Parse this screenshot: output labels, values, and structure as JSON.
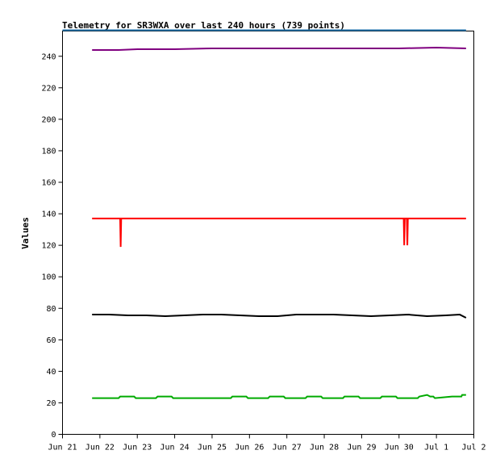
{
  "chart_data": {
    "type": "line",
    "title": "Telemetry for SR3WXA over last 240 hours (739 points)",
    "xlabel": "",
    "ylabel": "Values",
    "xlim": [
      "2024-06-21",
      "2024-07-02"
    ],
    "ylim": [
      0,
      256
    ],
    "x_ticks": [
      "Jun 21",
      "Jun 22",
      "Jun 23",
      "Jun 24",
      "Jun 25",
      "Jun 26",
      "Jun 27",
      "Jun 28",
      "Jun 29",
      "Jun 30",
      "Jul 1",
      "Jul 2"
    ],
    "y_ticks": [
      0,
      20,
      40,
      60,
      80,
      100,
      120,
      140,
      160,
      180,
      200,
      220,
      240
    ],
    "grid": false,
    "legend": "none",
    "x_range_of_data": [
      "2024-06-21T19:00",
      "2024-07-01T19:00"
    ],
    "series": [
      {
        "color": "#800080",
        "points": [
          [
            "2024-06-21T19:00",
            244
          ],
          [
            "2024-06-22T12:00",
            244
          ],
          [
            "2024-06-23T00:00",
            244.5
          ],
          [
            "2024-06-24T00:00",
            244.5
          ],
          [
            "2024-06-25T00:00",
            245
          ],
          [
            "2024-06-26T00:00",
            245
          ],
          [
            "2024-06-27T00:00",
            245
          ],
          [
            "2024-06-28T00:00",
            245
          ],
          [
            "2024-06-29T00:00",
            245
          ],
          [
            "2024-06-30T00:00",
            245
          ],
          [
            "2024-07-01T00:00",
            245.5
          ],
          [
            "2024-07-01T19:00",
            245
          ]
        ]
      },
      {
        "color": "#ff0000",
        "points": [
          [
            "2024-06-21T19:00",
            137
          ],
          [
            "2024-06-22T13:00",
            137
          ],
          [
            "2024-06-22T13:20",
            119
          ],
          [
            "2024-06-22T13:40",
            137
          ],
          [
            "2024-06-30T03:00",
            137
          ],
          [
            "2024-06-30T03:20",
            120
          ],
          [
            "2024-06-30T03:40",
            137
          ],
          [
            "2024-06-30T05:00",
            137
          ],
          [
            "2024-06-30T05:20",
            120
          ],
          [
            "2024-06-30T05:40",
            137
          ],
          [
            "2024-07-01T19:00",
            137
          ]
        ]
      },
      {
        "color": "#000000",
        "points": [
          [
            "2024-06-21T19:00",
            76
          ],
          [
            "2024-06-22T06:00",
            76
          ],
          [
            "2024-06-22T18:00",
            75.5
          ],
          [
            "2024-06-23T06:00",
            75.5
          ],
          [
            "2024-06-23T18:00",
            75
          ],
          [
            "2024-06-24T06:00",
            75.5
          ],
          [
            "2024-06-24T18:00",
            76
          ],
          [
            "2024-06-25T06:00",
            76
          ],
          [
            "2024-06-25T18:00",
            75.5
          ],
          [
            "2024-06-26T06:00",
            75
          ],
          [
            "2024-06-26T18:00",
            75
          ],
          [
            "2024-06-27T06:00",
            76
          ],
          [
            "2024-06-27T18:00",
            76
          ],
          [
            "2024-06-28T06:00",
            76
          ],
          [
            "2024-06-28T18:00",
            75.5
          ],
          [
            "2024-06-29T06:00",
            75
          ],
          [
            "2024-06-29T18:00",
            75.5
          ],
          [
            "2024-06-30T06:00",
            76
          ],
          [
            "2024-06-30T18:00",
            75
          ],
          [
            "2024-07-01T06:00",
            75.5
          ],
          [
            "2024-07-01T15:00",
            76
          ],
          [
            "2024-07-01T19:00",
            74
          ]
        ]
      },
      {
        "color": "#00aa00",
        "points": [
          [
            "2024-06-21T19:00",
            23
          ],
          [
            "2024-06-22T12:00",
            23
          ],
          [
            "2024-06-22T13:00",
            24
          ],
          [
            "2024-06-22T22:00",
            24
          ],
          [
            "2024-06-22T23:00",
            23
          ],
          [
            "2024-06-23T12:00",
            23
          ],
          [
            "2024-06-23T13:00",
            24
          ],
          [
            "2024-06-23T22:00",
            24
          ],
          [
            "2024-06-23T23:00",
            23
          ],
          [
            "2024-06-25T12:00",
            23
          ],
          [
            "2024-06-25T13:00",
            24
          ],
          [
            "2024-06-25T22:00",
            24
          ],
          [
            "2024-06-25T23:00",
            23
          ],
          [
            "2024-06-26T12:00",
            23
          ],
          [
            "2024-06-26T13:00",
            24
          ],
          [
            "2024-06-26T22:00",
            24
          ],
          [
            "2024-06-26T23:00",
            23
          ],
          [
            "2024-06-27T12:00",
            23
          ],
          [
            "2024-06-27T13:00",
            24
          ],
          [
            "2024-06-27T22:00",
            24
          ],
          [
            "2024-06-27T23:00",
            23
          ],
          [
            "2024-06-28T12:00",
            23
          ],
          [
            "2024-06-28T13:00",
            24
          ],
          [
            "2024-06-28T22:00",
            24
          ],
          [
            "2024-06-28T23:00",
            23
          ],
          [
            "2024-06-29T12:00",
            23
          ],
          [
            "2024-06-29T13:00",
            24
          ],
          [
            "2024-06-29T22:00",
            24
          ],
          [
            "2024-06-29T23:00",
            23
          ],
          [
            "2024-06-30T12:00",
            23
          ],
          [
            "2024-06-30T13:00",
            24
          ],
          [
            "2024-06-30T18:00",
            25
          ],
          [
            "2024-06-30T20:00",
            24
          ],
          [
            "2024-06-30T22:00",
            24
          ],
          [
            "2024-06-30T23:00",
            23
          ],
          [
            "2024-07-01T10:00",
            24
          ],
          [
            "2024-07-01T16:00",
            24
          ],
          [
            "2024-07-01T16:30",
            25
          ],
          [
            "2024-07-01T19:00",
            25
          ]
        ]
      }
    ],
    "reference_line": {
      "value": 256,
      "color": "#1f6fa8"
    }
  }
}
